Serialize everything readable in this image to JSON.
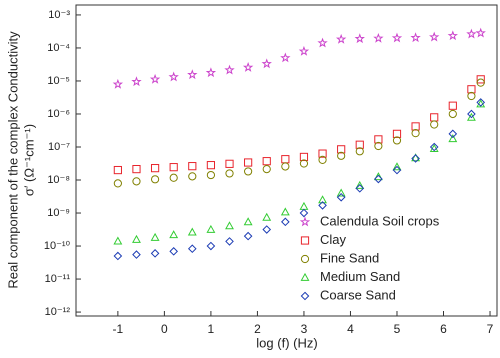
{
  "chart_data": {
    "type": "scatter",
    "x_label": "log (f)   (Hz)",
    "y_label": [
      "Real component of  the complex Conductivity",
      "σ′ (Ω⁻¹cm⁻¹)"
    ],
    "x": [
      -1,
      -0.6,
      -0.2,
      0.2,
      0.6,
      1,
      1.4,
      1.8,
      2.2,
      2.6,
      3,
      3.4,
      3.8,
      4.2,
      4.6,
      5,
      5.4,
      5.8,
      6.2,
      6.6,
      6.8
    ],
    "series": [
      {
        "name": "Calendula Soil crops",
        "color": "#cc44cc",
        "marker": "star",
        "values": [
          7.9e-06,
          9.5e-06,
          1.12e-05,
          1.32e-05,
          1.55e-05,
          1.78e-05,
          2.14e-05,
          2.57e-05,
          3.31e-05,
          5e-05,
          7.9e-05,
          0.000141,
          0.000182,
          0.000191,
          0.000195,
          0.0002,
          0.000204,
          0.000214,
          0.000234,
          0.000263,
          0.000282
        ]
      },
      {
        "name": "Clay",
        "color": "#e8242c",
        "marker": "square",
        "values": [
          2e-08,
          2.14e-08,
          2.29e-08,
          2.45e-08,
          2.63e-08,
          2.82e-08,
          3.09e-08,
          3.39e-08,
          3.72e-08,
          4.27e-08,
          5e-08,
          6.3e-08,
          8.5e-08,
          1.17e-07,
          1.7e-07,
          2.5e-07,
          4.2e-07,
          7.9e-07,
          1.78e-06,
          5.6e-06,
          1.12e-05
        ]
      },
      {
        "name": "Fine Sand",
        "color": "#808000",
        "marker": "circle",
        "values": [
          7.9e-09,
          9.1e-09,
          1.05e-08,
          1.17e-08,
          1.29e-08,
          1.41e-08,
          1.58e-08,
          1.82e-08,
          2.14e-08,
          2.57e-08,
          3.16e-08,
          4.07e-08,
          5.4e-08,
          7.4e-08,
          1.07e-07,
          1.58e-07,
          2.63e-07,
          4.8e-07,
          1e-06,
          3.5e-06,
          8.9e-06
        ]
      },
      {
        "name": "Medium Sand",
        "color": "#33cc33",
        "marker": "triangle",
        "values": [
          1.41e-10,
          1.58e-10,
          1.82e-10,
          2.19e-10,
          2.63e-10,
          3.16e-10,
          4.07e-10,
          5.4e-10,
          7.4e-10,
          1.07e-09,
          1.58e-09,
          2.5e-09,
          4e-09,
          6.8e-09,
          1.26e-08,
          2.5e-08,
          4.7e-08,
          8.9e-08,
          1.78e-07,
          7.9e-07,
          2e-06
        ]
      },
      {
        "name": "Coarse Sand",
        "color": "#1c3cb4",
        "marker": "diamond",
        "values": [
          5e-11,
          5.5e-11,
          6e-11,
          6.9e-11,
          8.3e-11,
          1e-10,
          1.38e-10,
          2e-10,
          3.16e-10,
          5.4e-10,
          1e-09,
          1.7e-09,
          3e-09,
          5.6e-09,
          1.07e-08,
          2e-08,
          4.5e-08,
          1e-07,
          2.5e-07,
          1e-06,
          2.24e-06
        ]
      }
    ],
    "xlim": [
      -1.9,
      7.15
    ],
    "xticks": [
      -1,
      0,
      1,
      2,
      3,
      4,
      5,
      6,
      7
    ],
    "ylim": [
      7.6e-13,
      0.002
    ],
    "y_log": true,
    "yticks": [
      {
        "value": 1e-12,
        "label": "10⁻¹²"
      },
      {
        "value": 1e-11,
        "label": "10⁻¹¹"
      },
      {
        "value": 1e-10,
        "label": "10⁻¹⁰"
      },
      {
        "value": 1e-09,
        "label": "10⁻⁹"
      },
      {
        "value": 1e-08,
        "label": "10⁻⁸"
      },
      {
        "value": 1e-07,
        "label": "10⁻⁷"
      },
      {
        "value": 1e-06,
        "label": "10⁻⁶"
      },
      {
        "value": 1e-05,
        "label": "10⁻⁵"
      },
      {
        "value": 0.0001,
        "label": "10⁻⁴"
      },
      {
        "value": 0.001,
        "label": "10⁻³"
      }
    ],
    "grid": false,
    "legend": "lower right"
  }
}
